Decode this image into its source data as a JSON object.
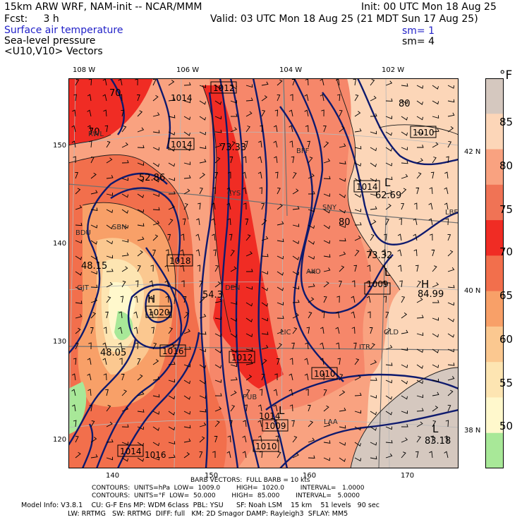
{
  "header": {
    "model": "15km ARW WRF, NAM-init -- NCAR/MMM",
    "init": "Init: 00 UTC Mon 18 Aug 25",
    "fcst": "Fcst:     3 h",
    "valid": "Valid: 03 UTC Mon 18 Aug 25 (21 MDT Sun 17 Aug 25)",
    "field1": "Surface air temperature",
    "field2": "Sea-level pressure",
    "field3": "<U10,V10> Vectors",
    "sm1": "sm= 1",
    "sm2": "sm= 4"
  },
  "map": {
    "lon_top": [
      "108 W",
      "106 W",
      "104 W",
      "102 W"
    ],
    "lat_right": [
      "42 N",
      "40 N",
      "38 N"
    ],
    "grid_left": [
      "150",
      "140",
      "130",
      "120"
    ],
    "grid_bottom": [
      "140",
      "150",
      "160",
      "170"
    ],
    "stations": [
      "RWL",
      "BFF",
      "SNY",
      "AKO",
      "DEN",
      "LIC",
      "ITR",
      "GLD",
      "PUB",
      "LAA",
      "LBF",
      "CYS",
      "BDU",
      "SBN",
      "GJT"
    ],
    "isobar_labels": [
      "1014",
      "1012",
      "1014",
      "1018",
      "1020",
      "1016",
      "1012",
      "1010",
      "1009",
      "1010",
      "1009",
      "1010",
      "1014",
      "1014",
      "1014",
      "1016"
    ],
    "temp_labels": [
      "73.33",
      "52.86",
      "48.15",
      "48.05",
      "54.3",
      "62.69",
      "73.32",
      "84.99",
      "83.18",
      "80",
      "80",
      "70",
      "70"
    ],
    "highs": [
      "H",
      "H"
    ],
    "lows": [
      "L",
      "L",
      "L",
      "L"
    ]
  },
  "colorbar": {
    "unit": "°F",
    "ticks": [
      "85",
      "80",
      "75",
      "70",
      "65",
      "60",
      "55",
      "50"
    ],
    "colors": [
      "#d5c8bf",
      "#fcd6b8",
      "#f9a280",
      "#f07355",
      "#f02c24",
      "#f26f4c",
      "#f8a068",
      "#fbc890",
      "#fde5b2",
      "#fff8cc",
      "#a8e898"
    ]
  },
  "footer": {
    "barb": "BARB VECTORS:  FULL BARB = 10 kts",
    "c1": "CONTOURS:  UNITS=hPa  LOW=  1009.0        HIGH=  1020.0        INTERVAL=   1.0000",
    "c2": "CONTOURS:  UNITS=°F  LOW=  50.000        HIGH=  85.000        INTERVAL=   5.0000",
    "m1": "Model Info: V3.8.1    CU: G-F Ens MP: WDM 6class  PBL: YSU      SF: Noah LSM    15 km    51 levels   90 sec",
    "m2": "LW: RRTMG   SW: RRTMG  DIFF: full   KM: 2D Smagor DAMP: Rayleigh3  SFLAY: MM5"
  }
}
